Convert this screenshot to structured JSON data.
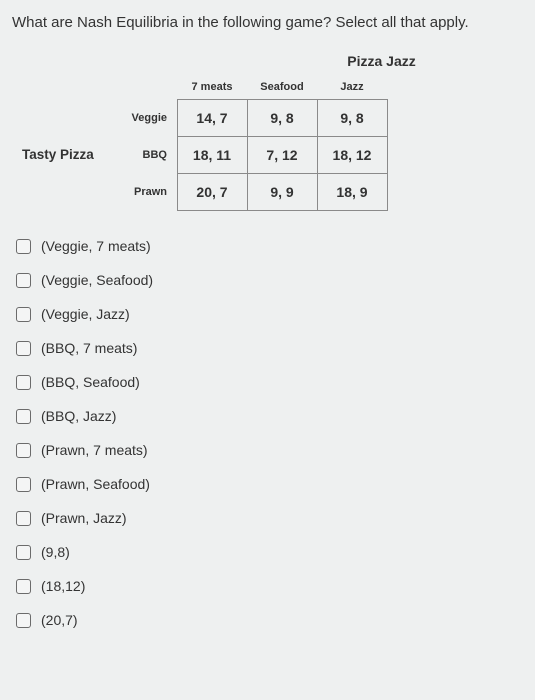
{
  "question": "What are Nash Equilibria in the following game? Select all that apply.",
  "game": {
    "col_player": "Pizza Jazz",
    "row_player": "Tasty Pizza",
    "cols": [
      "7 meats",
      "Seafood",
      "Jazz"
    ],
    "rows": [
      "Veggie",
      "BBQ",
      "Prawn"
    ],
    "cells": [
      [
        "14, 7",
        "9, 8",
        "9, 8"
      ],
      [
        "18, 11",
        "7, 12",
        "18, 12"
      ],
      [
        "20, 7",
        "9, 9",
        "18, 9"
      ]
    ],
    "border_color": "#8a8a8a",
    "cell_bg": "#eef0f0",
    "head_fontsize": 11,
    "cell_fontsize": 14
  },
  "options": [
    "(Veggie, 7 meats)",
    "(Veggie, Seafood)",
    "(Veggie, Jazz)",
    "(BBQ, 7 meats)",
    "(BBQ, Seafood)",
    "(BBQ, Jazz)",
    "(Prawn, 7 meats)",
    "(Prawn, Seafood)",
    "(Prawn, Jazz)",
    "(9,8)",
    "(18,12)",
    "(20,7)"
  ],
  "colors": {
    "page_bg": "#eef0f0",
    "text": "#333333",
    "checkbox_border": "#6b6b6b"
  }
}
